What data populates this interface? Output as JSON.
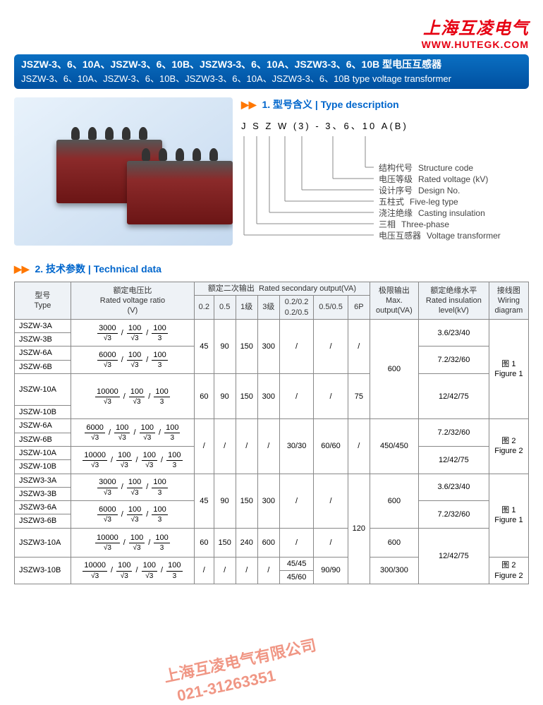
{
  "logo_text": "上海互凌电气",
  "url_text": "WWW.HUTEGK.COM",
  "title_cn": "JSZW-3、6、10A、JSZW-3、6、10B、JSZW3-3、6、10A、JSZW3-3、6、10B 型电压互感器",
  "title_en": "JSZW-3、6、10A、JSZW-3、6、10B、JSZW3-3、6、10A、JSZW3-3、6、10B type voltage transformer",
  "sec1_num": "1.",
  "sec1_cn": "型号含义",
  "sec1_en": "Type description",
  "designator": "J  S  Z  W (3)  -  3、6、10  A(B)",
  "desc_rows": [
    {
      "cn": "结构代号",
      "en": "Structure code"
    },
    {
      "cn": "电压等级",
      "en": "Rated voltage (kV)"
    },
    {
      "cn": "设计序号",
      "en": "Design No."
    },
    {
      "cn": "五柱式",
      "en": "Five-leg type"
    },
    {
      "cn": "浇注绝缘",
      "en": "Casting insulation"
    },
    {
      "cn": "三相",
      "en": "Three-phase"
    },
    {
      "cn": "电压互感器",
      "en": "Voltage transformer"
    }
  ],
  "sec2_num": "2.",
  "sec2_cn": "技术参数",
  "sec2_en": "Technical data",
  "watermark_line1": "上海互凌电气有限公司",
  "watermark_line2": "021-31263351",
  "headers": {
    "type_cn": "型号",
    "type_en": "Type",
    "ratio_cn": "额定电压比",
    "ratio_en": "Rated voltage ratio",
    "ratio_unit": "(V)",
    "sec_cn": "额定二次输出",
    "sec_en": "Rated secondary output(VA)",
    "c02": "0.2",
    "c05": "0.5",
    "c1": "1级",
    "c3": "3级",
    "c0202": "0.2/0.2",
    "c0205": "0.2/0.5",
    "c0505": "0.5/0.5",
    "c6p": "6P",
    "max_cn": "极限输出",
    "max_en": "Max.",
    "max_en2": "output(VA)",
    "ins_cn": "额定绝缘水平",
    "ins_en": "Rated insulation",
    "ins_en2": "level(kV)",
    "wir_cn": "接线图",
    "wir_en": "Wiring",
    "wir_en2": "diagram"
  },
  "ratios": {
    "r3000": [
      [
        "3000",
        "√3"
      ],
      [
        "100",
        "√3"
      ],
      [
        "100",
        "3"
      ]
    ],
    "r6000": [
      [
        "6000",
        "√3"
      ],
      [
        "100",
        "√3"
      ],
      [
        "100",
        "3"
      ]
    ],
    "r10000": [
      [
        "10000",
        "√3"
      ],
      [
        "100",
        "√3"
      ],
      [
        "100",
        "3"
      ]
    ],
    "r6000_4": [
      [
        "6000",
        "√3"
      ],
      [
        "100",
        "√3"
      ],
      [
        "100",
        "√3"
      ],
      [
        "100",
        "3"
      ]
    ],
    "r10000_4": [
      [
        "10000",
        "√3"
      ],
      [
        "100",
        "√3"
      ],
      [
        "100",
        "√3"
      ],
      [
        "100",
        "3"
      ]
    ]
  },
  "rows": [
    {
      "type": "JSZW-3A",
      "ratio": "r3000"
    },
    {
      "type": "JSZW-3B"
    },
    {
      "type": "JSZW-6A",
      "ratio": "r6000"
    },
    {
      "type": "JSZW-6B"
    },
    {
      "type": "JSZW-10A",
      "ratio": "r10000"
    },
    {
      "type": "JSZW-10B"
    },
    {
      "type": "JSZW-6A",
      "ratio": "r6000_4"
    },
    {
      "type": "JSZW-6B"
    },
    {
      "type": "JSZW-10A",
      "ratio": "r10000_4"
    },
    {
      "type": "JSZW-10B"
    },
    {
      "type": "JSZW3-3A",
      "ratio": "r3000"
    },
    {
      "type": "JSZW3-3B"
    },
    {
      "type": "JSZW3-6A",
      "ratio": "r6000"
    },
    {
      "type": "JSZW3-6B"
    },
    {
      "type": "JSZW3-10A",
      "ratio": "r10000"
    },
    {
      "type": "JSZW3-10B",
      "ratio": "r10000_4"
    }
  ],
  "group1": {
    "c02": "45",
    "c05": "90",
    "c1": "150",
    "c3": "300",
    "cx": "/",
    "c0505": "/",
    "c6p": "/",
    "max": "600"
  },
  "row10": {
    "c02": "60",
    "c05": "90",
    "c1": "150",
    "c3": "300",
    "cx": "/",
    "c0505": "/",
    "c6p": "75"
  },
  "group2": {
    "c02": "/",
    "c05": "/",
    "c1": "/",
    "c3": "/",
    "cx": "30/30",
    "c0505": "60/60",
    "c6p": "/",
    "max": "450/450"
  },
  "group3": {
    "c02": "45",
    "c05": "90",
    "c1": "150",
    "c3": "300",
    "cx": "/",
    "c0505": "/",
    "c6p": "120",
    "max": "600"
  },
  "row3_10a": {
    "c02": "60",
    "c05": "150",
    "c1": "240",
    "c3": "600",
    "cx": "/",
    "c0505": "/",
    "max": "600"
  },
  "row3_10b": {
    "c02": "/",
    "c05": "/",
    "c1": "/",
    "c3": "/",
    "cx1": "45/45",
    "cx2": "45/60",
    "c0505": "90/90",
    "max": "300/300"
  },
  "ins": {
    "i3": "3.6/23/40",
    "i6": "7.2/32/60",
    "i10": "12/42/75"
  },
  "wir": {
    "f1_cn": "图 1",
    "f1_en": "Figure 1",
    "f2_cn": "图 2",
    "f2_en": "Figure 2"
  },
  "colors": {
    "accent": "#e60012",
    "bar1": "#0a6fc2",
    "bar2": "#0050a0",
    "link": "#0066cc",
    "tri": "#ff7700",
    "border": "#888",
    "head_bg": "#eef2f6",
    "wm": "rgba(230,80,50,0.6)"
  }
}
